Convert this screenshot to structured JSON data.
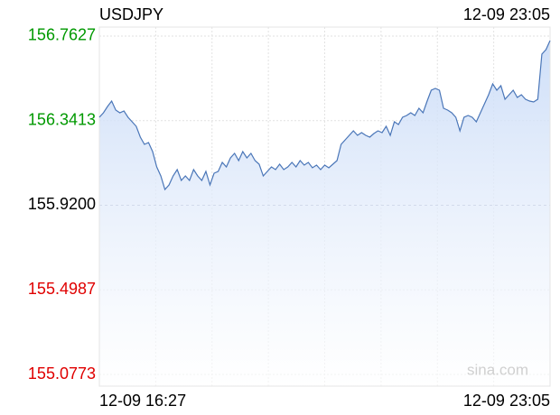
{
  "chart_data": {
    "type": "line",
    "title": "USDJPY",
    "time": "12-09 23:05",
    "watermark": "sina.com",
    "categories": [
      "12-09 16:27",
      null,
      null,
      null,
      null,
      null,
      null,
      null,
      null,
      null,
      null,
      null,
      null,
      null,
      null,
      null,
      null,
      null,
      null,
      null,
      null,
      null,
      null,
      null,
      null,
      null,
      null,
      null,
      null,
      null,
      null,
      null,
      null,
      null,
      null,
      null,
      null,
      null,
      null,
      null,
      null,
      null,
      null,
      null,
      null,
      null,
      null,
      null,
      null,
      null,
      null,
      null,
      null,
      null,
      null,
      null,
      null,
      null,
      null,
      null,
      null,
      null,
      null,
      null,
      null,
      null,
      null,
      null,
      null,
      null,
      null,
      null,
      null,
      null,
      null,
      null,
      null,
      null,
      null,
      null,
      null,
      null,
      null,
      null,
      null,
      null,
      null,
      null,
      null,
      null,
      null,
      null,
      null,
      null,
      null,
      null,
      null,
      null,
      null,
      null,
      null,
      null,
      null,
      null,
      null,
      null,
      null,
      null,
      null,
      null,
      "12-09 23:05"
    ],
    "values": [
      156.3582,
      156.3806,
      156.4121,
      156.4391,
      156.3941,
      156.3806,
      156.3896,
      156.3582,
      156.3357,
      156.3132,
      156.2593,
      156.2233,
      156.2323,
      156.1874,
      156.111,
      156.066,
      155.9986,
      156.0211,
      156.066,
      156.0975,
      156.0436,
      156.066,
      156.0436,
      156.0975,
      156.066,
      156.0436,
      156.0885,
      156.0211,
      156.0795,
      156.0885,
      156.1334,
      156.111,
      156.1559,
      156.1784,
      156.1424,
      156.1874,
      156.1559,
      156.1784,
      156.1424,
      156.1245,
      156.066,
      156.0885,
      156.111,
      156.0975,
      156.1245,
      156.0975,
      156.111,
      156.1334,
      156.111,
      156.1424,
      156.12,
      156.1334,
      156.1065,
      156.12,
      156.0975,
      156.12,
      156.1065,
      156.1245,
      156.1424,
      156.2233,
      156.2458,
      156.2683,
      156.2907,
      156.2683,
      156.2818,
      156.2683,
      156.2593,
      156.2773,
      156.2907,
      156.2818,
      156.3132,
      156.2683,
      156.3357,
      156.3222,
      156.3582,
      156.3671,
      156.3806,
      156.3671,
      156.4031,
      156.3806,
      156.4391,
      156.493,
      156.502,
      156.493,
      156.4031,
      156.3941,
      156.3806,
      156.3582,
      156.2907,
      156.3582,
      156.3671,
      156.3582,
      156.3357,
      156.3806,
      156.4256,
      156.4705,
      156.5245,
      156.493,
      156.5155,
      156.448,
      156.4705,
      156.493,
      156.457,
      156.4705,
      156.448,
      156.4391,
      156.4346,
      156.448,
      156.6728,
      156.6952,
      156.7402
    ],
    "color": "#4a76b8",
    "up_color": "#009900",
    "down_color": "#e00000",
    "ylim": [
      155.0189,
      156.8076
    ],
    "yticks": [
      155.0773,
      155.4987,
      {
        "value": 155.92,
        "label": "155.9200"
      },
      156.3413,
      156.7627
    ],
    "grid": true
  }
}
